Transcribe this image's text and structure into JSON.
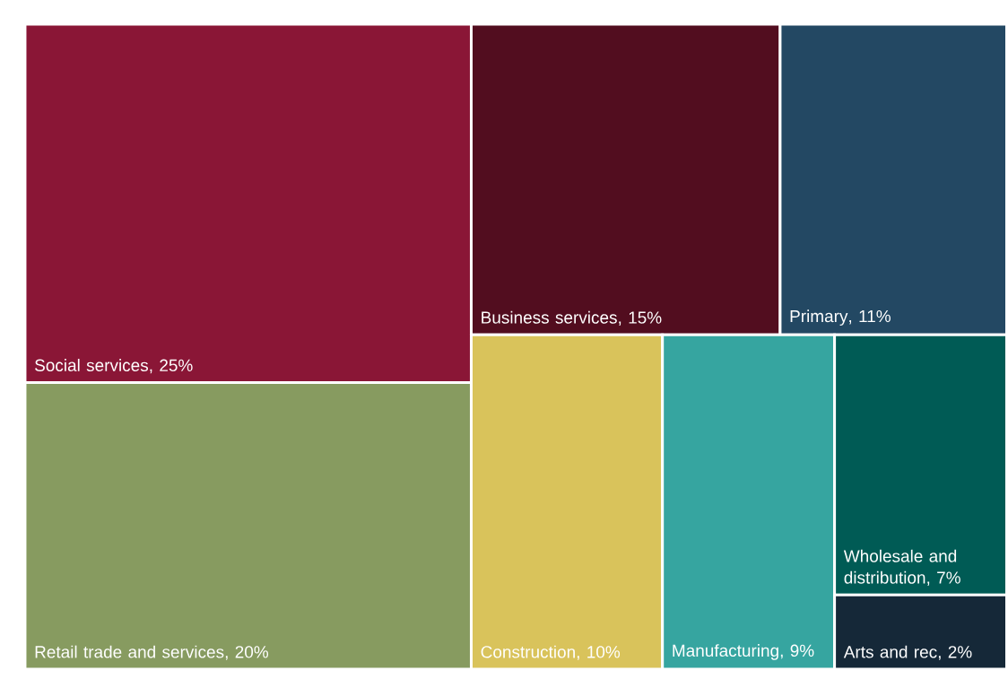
{
  "chart_data": {
    "type": "other",
    "categories": [
      "Social services",
      "Retail trade and services",
      "Business services",
      "Primary",
      "Construction",
      "Manufacturing",
      "Wholesale and distribution",
      "Arts and rec"
    ],
    "values": [
      25,
      20,
      15,
      11,
      10,
      9,
      7,
      2
    ],
    "value_labels": [
      ", 25%",
      ", 20%",
      ", 15%",
      ", 11%",
      ", 10%",
      ", 9%",
      ", 7%",
      ", 2%"
    ],
    "colors": [
      "#8a1636",
      "#879b60",
      "#520d1f",
      "#234863",
      "#d9c35b",
      "#36a5a0",
      "#005b55",
      "#152838"
    ]
  }
}
